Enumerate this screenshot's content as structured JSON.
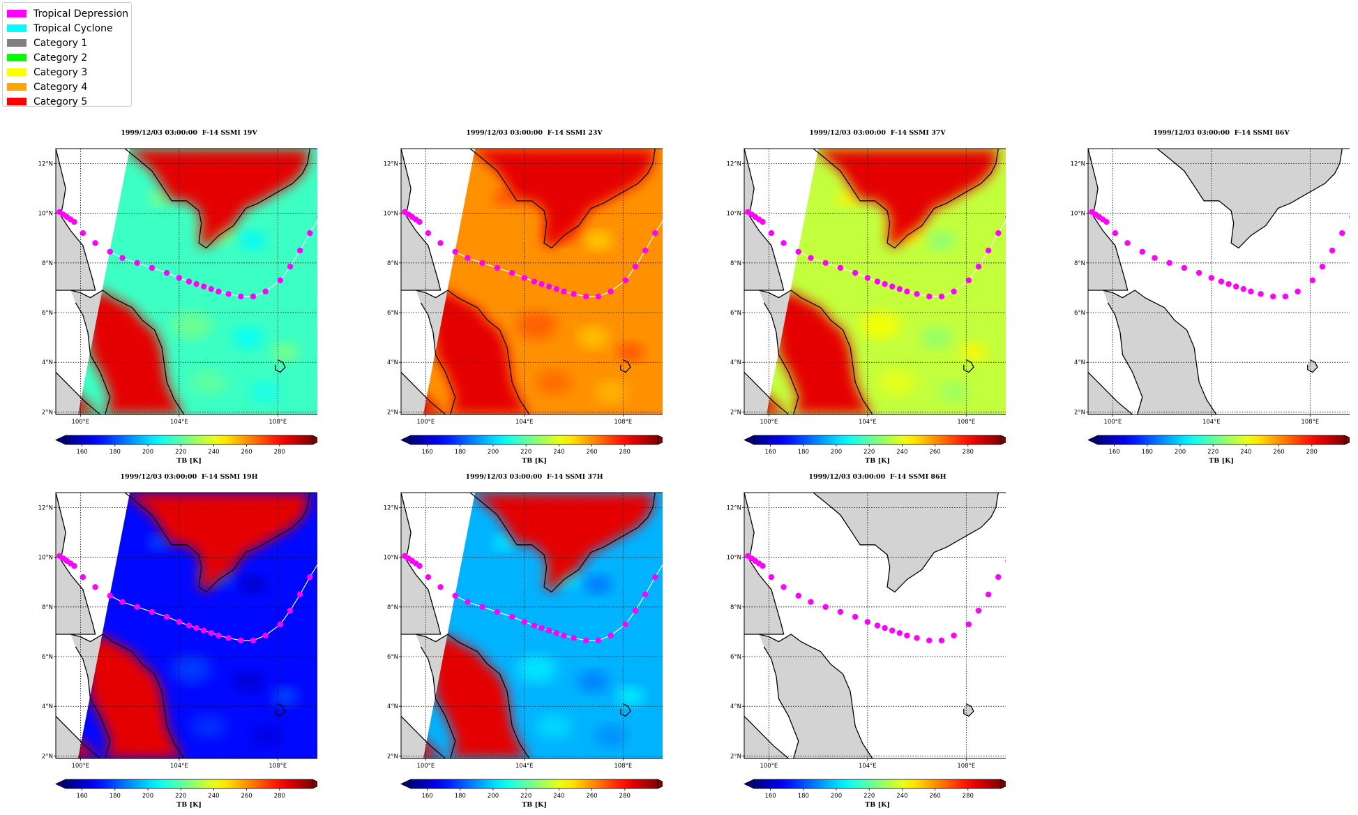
{
  "legend": {
    "items": [
      {
        "label": "Tropical Depression",
        "color": "#ff00ff"
      },
      {
        "label": "Tropical Cyclone",
        "color": "#00ffff"
      },
      {
        "label": "Category 1",
        "color": "#808080"
      },
      {
        "label": "Category 2",
        "color": "#00ff00"
      },
      {
        "label": "Category 3",
        "color": "#ffff00"
      },
      {
        "label": "Category 4",
        "color": "#ffa500"
      },
      {
        "label": "Category 5",
        "color": "#ff0000"
      }
    ]
  },
  "chart_data": [
    {
      "type": "heatmap",
      "title": "1999/12/03 03:00:00  F-14 SSMI 19V",
      "colorbar_label": "TB [K]",
      "colorbar_ticks": [
        160,
        180,
        200,
        220,
        240,
        260,
        280
      ],
      "ocean_tb": 215,
      "land_tb": 285,
      "has_swath": true,
      "track_line": true
    },
    {
      "type": "heatmap",
      "title": "1999/12/03 03:00:00  F-14 SSMI 23V",
      "colorbar_label": "TB [K]",
      "colorbar_ticks": [
        160,
        180,
        200,
        220,
        240,
        260,
        280
      ],
      "ocean_tb": 260,
      "land_tb": 285,
      "has_swath": true,
      "track_line": true
    },
    {
      "type": "heatmap",
      "title": "1999/12/03 03:00:00  F-14 SSMI 37V",
      "colorbar_label": "TB [K]",
      "colorbar_ticks": [
        160,
        180,
        200,
        220,
        240,
        260,
        280
      ],
      "ocean_tb": 235,
      "land_tb": 285,
      "has_swath": true,
      "track_line": true
    },
    {
      "type": "heatmap",
      "title": "1999/12/03 03:00:00  F-14 SSMI 86V",
      "colorbar_label": "TB [K]",
      "colorbar_ticks": [
        160,
        180,
        200,
        220,
        240,
        260,
        280
      ],
      "has_swath": false,
      "track_line": false
    },
    {
      "type": "heatmap",
      "title": "1999/12/03 03:00:00  F-14 SSMI 19H",
      "colorbar_label": "TB [K]",
      "colorbar_ticks": [
        160,
        180,
        200,
        220,
        240,
        260,
        280
      ],
      "ocean_tb": 170,
      "land_tb": 285,
      "has_swath": true,
      "track_line": true
    },
    {
      "type": "heatmap",
      "title": "1999/12/03 03:00:00  F-14 SSMI 37H",
      "colorbar_label": "TB [K]",
      "colorbar_ticks": [
        160,
        180,
        200,
        220,
        240,
        260,
        280
      ],
      "ocean_tb": 195,
      "land_tb": 285,
      "has_swath": true,
      "track_line": true
    },
    {
      "type": "heatmap",
      "title": "1999/12/03 03:00:00  F-14 SSMI 86H",
      "colorbar_label": "TB [K]",
      "colorbar_ticks": [
        160,
        180,
        200,
        220,
        240,
        260,
        280
      ],
      "has_swath": false,
      "track_line": false
    }
  ],
  "map": {
    "lon_range": [
      99,
      109.8
    ],
    "lat_range": [
      1.9,
      12.6
    ],
    "lon_ticks": [
      {
        "v": 100,
        "label": "100°E"
      },
      {
        "v": 104,
        "label": "104°E"
      },
      {
        "v": 108,
        "label": "108°E"
      }
    ],
    "lat_ticks": [
      {
        "v": 2,
        "label": "2°N"
      },
      {
        "v": 4,
        "label": "4°N"
      },
      {
        "v": 6,
        "label": "6°N"
      },
      {
        "v": 8,
        "label": "8°N"
      },
      {
        "v": 10,
        "label": "10°N"
      },
      {
        "v": 12,
        "label": "12°N"
      }
    ]
  },
  "track": {
    "category": "Tropical Depression",
    "points": [
      [
        99.15,
        10.05
      ],
      [
        99.3,
        9.95
      ],
      [
        99.45,
        9.85
      ],
      [
        99.6,
        9.75
      ],
      [
        99.75,
        9.65
      ],
      [
        100.1,
        9.2
      ],
      [
        100.6,
        8.8
      ],
      [
        101.2,
        8.45
      ],
      [
        101.7,
        8.2
      ],
      [
        102.3,
        8.0
      ],
      [
        102.9,
        7.8
      ],
      [
        103.5,
        7.6
      ],
      [
        104.0,
        7.4
      ],
      [
        104.4,
        7.25
      ],
      [
        104.7,
        7.15
      ],
      [
        105.0,
        7.05
      ],
      [
        105.3,
        6.95
      ],
      [
        105.6,
        6.85
      ],
      [
        106.0,
        6.75
      ],
      [
        106.5,
        6.65
      ],
      [
        107.0,
        6.65
      ],
      [
        107.5,
        6.85
      ],
      [
        108.1,
        7.3
      ],
      [
        108.5,
        7.85
      ],
      [
        108.9,
        8.5
      ],
      [
        109.3,
        9.2
      ],
      [
        109.7,
        9.85
      ]
    ]
  }
}
